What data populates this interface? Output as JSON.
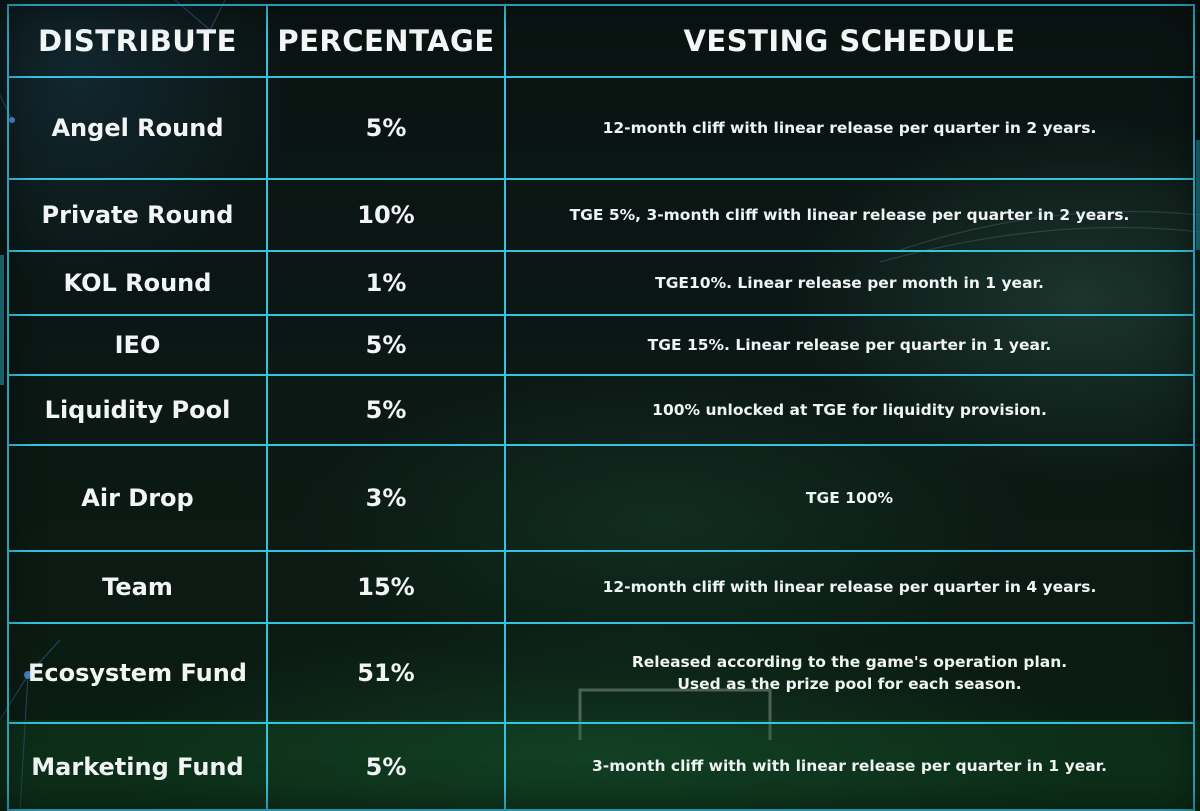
{
  "table": {
    "headers": {
      "distribute": "DISTRIBUTE",
      "percentage": "PERCENTAGE",
      "vesting": "VESTING SCHEDULE"
    },
    "rows": [
      {
        "name": "Angel Round",
        "percent": "5%",
        "schedule": [
          "12-month cliff with linear release per quarter in 2 years."
        ]
      },
      {
        "name": "Private Round",
        "percent": "10%",
        "schedule": [
          "TGE 5%, 3-month cliff with linear release per quarter in 2 years."
        ]
      },
      {
        "name": "KOL Round",
        "percent": "1%",
        "schedule": [
          "TGE10%. Linear release per month in 1 year."
        ]
      },
      {
        "name": "IEO",
        "percent": "5%",
        "schedule": [
          "TGE 15%. Linear release per quarter in 1 year."
        ]
      },
      {
        "name": "Liquidity Pool",
        "percent": "5%",
        "schedule": [
          "100% unlocked at TGE for liquidity provision."
        ]
      },
      {
        "name": "Air Drop",
        "percent": "3%",
        "schedule": [
          "TGE 100%"
        ]
      },
      {
        "name": "Team",
        "percent": "15%",
        "schedule": [
          "12-month cliff with linear release per quarter in 4 years."
        ]
      },
      {
        "name": "Ecosystem Fund",
        "percent": "51%",
        "schedule": [
          "Released according to the game's operation plan.",
          "Used as the prize pool for each season."
        ]
      },
      {
        "name": "Marketing Fund",
        "percent": "5%",
        "schedule": [
          "3-month cliff with with linear release per quarter in 1 year."
        ]
      }
    ]
  },
  "colors": {
    "border": "#35c4e0",
    "text": "#f2f5f5",
    "background": "#0b1714"
  }
}
